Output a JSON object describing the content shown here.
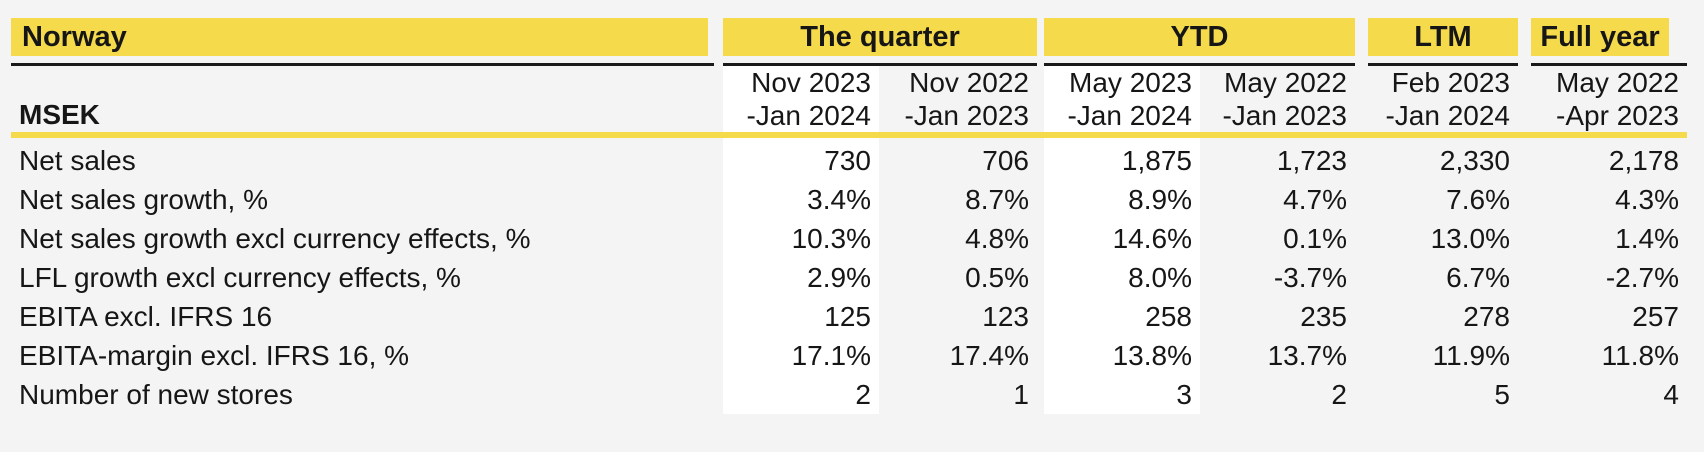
{
  "header": {
    "region": "Norway",
    "unit": "MSEK",
    "groups": [
      {
        "label": "The quarter"
      },
      {
        "label": "YTD"
      },
      {
        "label": "LTM"
      },
      {
        "label": "Full year"
      }
    ]
  },
  "columns": [
    {
      "group": "The quarter",
      "period_line1": "Nov 2023",
      "period_line2": "-Jan 2024",
      "highlighted": true
    },
    {
      "group": "The quarter",
      "period_line1": "Nov 2022",
      "period_line2": "-Jan 2023",
      "highlighted": false
    },
    {
      "group": "YTD",
      "period_line1": "May 2023",
      "period_line2": "-Jan 2024",
      "highlighted": true
    },
    {
      "group": "YTD",
      "period_line1": "May 2022",
      "period_line2": "-Jan 2023",
      "highlighted": false
    },
    {
      "group": "LTM",
      "period_line1": "Feb 2023",
      "period_line2": "-Jan 2024",
      "highlighted": false
    },
    {
      "group": "Full year",
      "period_line1": "May 2022",
      "period_line2": "-Apr 2023",
      "highlighted": false
    }
  ],
  "rows": [
    {
      "label": "Net sales",
      "values": [
        "730",
        "706",
        "1,875",
        "1,723",
        "2,330",
        "2,178"
      ]
    },
    {
      "label": "Net sales growth, %",
      "values": [
        "3.4%",
        "8.7%",
        "8.9%",
        "4.7%",
        "7.6%",
        "4.3%"
      ]
    },
    {
      "label": "Net sales growth excl currency effects, %",
      "values": [
        "10.3%",
        "4.8%",
        "14.6%",
        "0.1%",
        "13.0%",
        "1.4%"
      ]
    },
    {
      "label": "LFL growth excl currency effects, %",
      "values": [
        "2.9%",
        "0.5%",
        "8.0%",
        "-3.7%",
        "6.7%",
        "-2.7%"
      ]
    },
    {
      "label": "EBITA excl. IFRS 16",
      "values": [
        "125",
        "123",
        "258",
        "235",
        "278",
        "257"
      ]
    },
    {
      "label": "EBITA-margin excl. IFRS 16, %",
      "values": [
        "17.1%",
        "17.4%",
        "13.8%",
        "13.7%",
        "11.9%",
        "11.8%"
      ]
    },
    {
      "label": "Number of new stores",
      "values": [
        "2",
        "1",
        "3",
        "2",
        "5",
        "4"
      ]
    }
  ],
  "colors": {
    "accent_yellow": "#F5DA4B",
    "page_background": "#F4F4F4",
    "highlight_column": "#FFFFFF",
    "rule_dark": "#1A1A1A",
    "text": "#161616"
  },
  "chart_data": {
    "type": "table",
    "title": "Norway",
    "unit": "MSEK",
    "column_groups": [
      "The quarter",
      "The quarter",
      "YTD",
      "YTD",
      "LTM",
      "Full year"
    ],
    "column_periods": [
      "Nov 2023-Jan 2024",
      "Nov 2022-Jan 2023",
      "May 2023-Jan 2024",
      "May 2022-Jan 2023",
      "Feb 2023-Jan 2024",
      "May 2022-Apr 2023"
    ],
    "rows": [
      {
        "label": "Net sales",
        "values": [
          730,
          706,
          1875,
          1723,
          2330,
          2178
        ]
      },
      {
        "label": "Net sales growth, %",
        "values": [
          3.4,
          8.7,
          8.9,
          4.7,
          7.6,
          4.3
        ]
      },
      {
        "label": "Net sales growth excl currency effects, %",
        "values": [
          10.3,
          4.8,
          14.6,
          0.1,
          13.0,
          1.4
        ]
      },
      {
        "label": "LFL growth excl currency effects, %",
        "values": [
          2.9,
          0.5,
          8.0,
          -3.7,
          6.7,
          -2.7
        ]
      },
      {
        "label": "EBITA excl. IFRS 16",
        "values": [
          125,
          123,
          258,
          235,
          278,
          257
        ]
      },
      {
        "label": "EBITA-margin excl. IFRS 16, %",
        "values": [
          17.1,
          17.4,
          13.8,
          13.7,
          11.9,
          11.8
        ]
      },
      {
        "label": "Number of new stores",
        "values": [
          2,
          1,
          3,
          2,
          5,
          4
        ]
      }
    ]
  }
}
